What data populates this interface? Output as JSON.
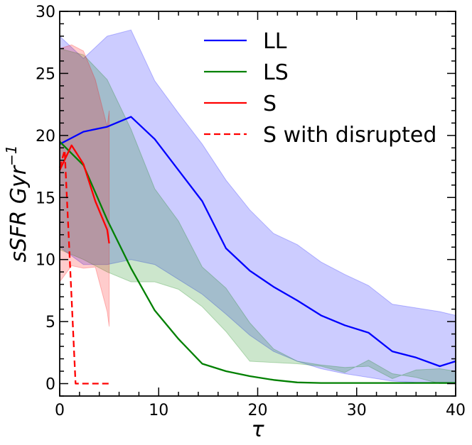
{
  "chart_data": {
    "type": "line",
    "xlabel": "τ",
    "ylabel": "sSFR  Gyr",
    "ylabel_exponent": "−1",
    "xlim": [
      0,
      40
    ],
    "ylim": [
      -1,
      30
    ],
    "xticks": [
      0,
      10,
      20,
      30,
      40
    ],
    "yticks": [
      0,
      5,
      10,
      15,
      20,
      25,
      30
    ],
    "xtick_labels": [
      "0",
      "10",
      "20",
      "30",
      "40"
    ],
    "ytick_labels": [
      "0",
      "5",
      "10",
      "15",
      "20",
      "25",
      "30"
    ],
    "grid": false,
    "legend_position": "top-right",
    "series": [
      {
        "name": "LL",
        "color": "#0000ff",
        "style": "solid",
        "x": [
          0,
          2.4,
          4.8,
          7.2,
          9.6,
          12,
          14.4,
          16.8,
          19.2,
          21.6,
          24,
          26.4,
          28.8,
          31.2,
          33.6,
          36,
          38.4,
          40
        ],
        "y": [
          19.3,
          20.3,
          20.7,
          21.5,
          19.7,
          17.2,
          14.7,
          10.9,
          9.1,
          7.8,
          6.7,
          5.5,
          4.7,
          4.1,
          2.6,
          2.1,
          1.4,
          1.8
        ],
        "band_upper": [
          28.0,
          26.2,
          28.0,
          28.5,
          24.4,
          21.8,
          19.3,
          16.4,
          14.0,
          12.1,
          11.2,
          9.8,
          8.8,
          7.9,
          6.4,
          6.1,
          5.8,
          5.5
        ],
        "band_lower": [
          11.0,
          9.6,
          9.6,
          10.0,
          9.6,
          8.4,
          7.2,
          5.6,
          3.9,
          2.6,
          1.8,
          1.2,
          0.8,
          0.5,
          0.2,
          0.1,
          0.1,
          0.1
        ],
        "band_color": "#0000ff"
      },
      {
        "name": "LS",
        "color": "#008000",
        "style": "solid",
        "x": [
          0,
          2.4,
          4.8,
          7.2,
          9.6,
          12,
          14.4,
          16.8,
          19.2,
          21.6,
          24,
          26.4,
          28.8,
          31.2,
          33.6,
          36,
          38.4,
          40
        ],
        "y": [
          19.5,
          17.6,
          13.2,
          9.3,
          5.9,
          3.6,
          1.6,
          1.0,
          0.6,
          0.3,
          0.1,
          0.05,
          0.05,
          0.05,
          0.05,
          0.05,
          0.05,
          0.05
        ],
        "band_upper": [
          27.0,
          26.5,
          24.5,
          20.5,
          15.7,
          13.1,
          9.4,
          7.7,
          4.9,
          2.8,
          1.8,
          1.5,
          1.3,
          1.4,
          0.4,
          1.1,
          1.2,
          1.0
        ],
        "band_lower": [
          10.8,
          10.0,
          9.0,
          8.2,
          8.2,
          7.6,
          6.2,
          4.2,
          1.8,
          1.7,
          1.6,
          1.4,
          0.9,
          1.9,
          0.8,
          0.5,
          0.0,
          0.0
        ],
        "band_color": "#008000"
      },
      {
        "name": "S",
        "color": "#ff0000",
        "style": "solid",
        "x": [
          0,
          1.2,
          2.4,
          3.6,
          4.8,
          5.0
        ],
        "y": [
          17.2,
          19.2,
          17.7,
          14.7,
          12.4,
          11.3
        ],
        "band_upper": [
          27.0,
          27.3,
          26.8,
          24.5,
          20.7,
          22.0
        ],
        "band_lower": [
          8.2,
          9.5,
          9.3,
          9.4,
          5.8,
          4.6
        ],
        "band_color": "#ff0000"
      },
      {
        "name": "S with disrupted",
        "color": "#ff0000",
        "style": "dashed",
        "x": [
          0,
          0.5,
          1.6,
          5.0
        ],
        "y": [
          17.4,
          18.8,
          0.0,
          0.0
        ]
      }
    ]
  },
  "legend": {
    "entries": [
      "LL",
      "LS",
      "S",
      "S with disrupted"
    ]
  }
}
